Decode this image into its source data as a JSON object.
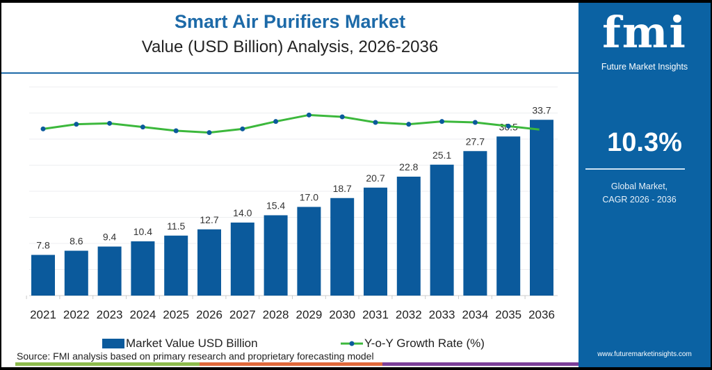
{
  "title": "Smart Air Purifiers Market",
  "subtitle": "Value (USD Billion) Analysis, 2026-2036",
  "panel": {
    "logo_text": "fmi",
    "logo_subtitle": "Future Market Insights",
    "cagr_value": "10.3%",
    "cagr_label_line1": "Global Market,",
    "cagr_label_line2": "CAGR 2026 - 2036",
    "website": "www.futuremarketinsights.com"
  },
  "source": "Source: FMI analysis based on primary research and proprietary forecasting model",
  "colors": {
    "bar": "#0b5a9c",
    "line": "#3cb83c",
    "marker": "#0b5a9c",
    "title": "#1d6aa8",
    "panel": "#0b62a3"
  },
  "chart_data": {
    "type": "bar",
    "categories": [
      "2021",
      "2022",
      "2023",
      "2024",
      "2025",
      "2026",
      "2027",
      "2028",
      "2029",
      "2030",
      "2031",
      "2032",
      "2033",
      "2034",
      "2035",
      "2036"
    ],
    "series": [
      {
        "name": "Market Value USD Billion",
        "type": "bar",
        "values": [
          7.8,
          8.6,
          9.4,
          10.4,
          11.5,
          12.7,
          14.0,
          15.4,
          17.0,
          18.7,
          20.7,
          22.8,
          25.1,
          27.7,
          30.5,
          33.7
        ],
        "labels": [
          "7.8",
          "8.6",
          "9.4",
          "10.4",
          "11.5",
          "12.7",
          "14.0",
          "15.4",
          "17.0",
          "18.7",
          "20.7",
          "22.8",
          "25.1",
          "27.7",
          "30.5",
          "33.7"
        ]
      },
      {
        "name": "Y-o-Y Growth Rate (%)",
        "type": "line",
        "values": [
          9.9,
          10.4,
          10.5,
          10.1,
          9.7,
          9.5,
          9.9,
          10.7,
          11.4,
          11.2,
          10.6,
          10.4,
          10.7,
          10.6,
          10.2,
          9.8
        ]
      }
    ],
    "ylim": [
      0,
      40
    ],
    "growth_ylim": [
      7,
      13
    ],
    "grid": true,
    "legend_position": "bottom"
  }
}
